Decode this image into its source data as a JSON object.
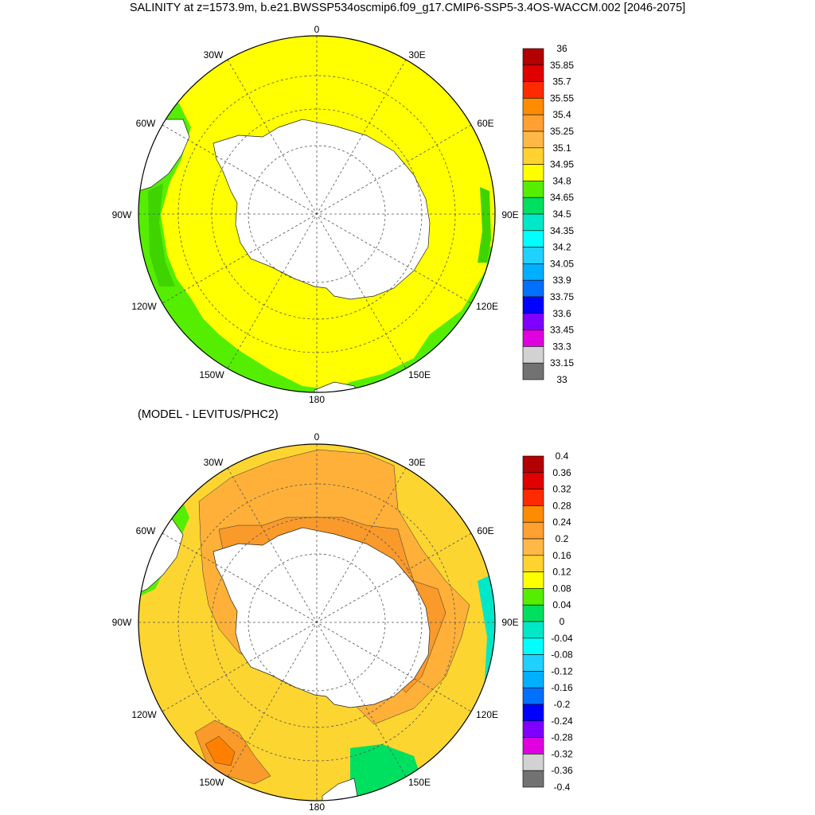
{
  "title": "SALINITY at z=1573.9m, b.e21.BWSSP534oscmip6.f09_g17.CMIP6-SSP5-3.4OS-WACCM.002 [2046-2075]",
  "subtitle": "(MODEL - LEVITUS/PHC2)",
  "longitude_labels": {
    "lon0": "0",
    "lon30w": "30W",
    "lon30e": "30E",
    "lon60w": "60W",
    "lon60e": "60E",
    "lon90w": "90W",
    "lon90e": "90E",
    "lon120w": "120W",
    "lon120e": "120E",
    "lon150w": "150W",
    "lon150e": "150E",
    "lon180": "180"
  },
  "top_colorbar": {
    "labels": [
      "36",
      "35.85",
      "35.7",
      "35.55",
      "35.4",
      "35.25",
      "35.1",
      "34.95",
      "34.8",
      "34.65",
      "34.5",
      "34.35",
      "34.2",
      "34.05",
      "33.9",
      "33.75",
      "33.6",
      "33.45",
      "33.3",
      "33.15",
      "33"
    ]
  },
  "bottom_colorbar": {
    "labels": [
      "0.4",
      "0.36",
      "0.32",
      "0.28",
      "0.24",
      "0.2",
      "0.16",
      "0.12",
      "0.08",
      "0.04",
      "0",
      "-0.04",
      "-0.08",
      "-0.12",
      "-0.16",
      "-0.2",
      "-0.24",
      "-0.28",
      "-0.32",
      "-0.36",
      "-0.4"
    ]
  },
  "colors": {
    "palette": [
      "#b30000",
      "#e00000",
      "#ff2a00",
      "#ff8c00",
      "#ffa030",
      "#ffb845",
      "#ffd230",
      "#ffff00",
      "#55ee00",
      "#00e060",
      "#00e8c8",
      "#00ffff",
      "#20d0ff",
      "#00b0ff",
      "#0070ff",
      "#0000ff",
      "#8000ff",
      "#e000e0",
      "#d2d2d2",
      "#727272"
    ],
    "ocean_top": "#ffff00",
    "ocean_bottom": "#fdd531",
    "land": "#ffffff"
  }
}
